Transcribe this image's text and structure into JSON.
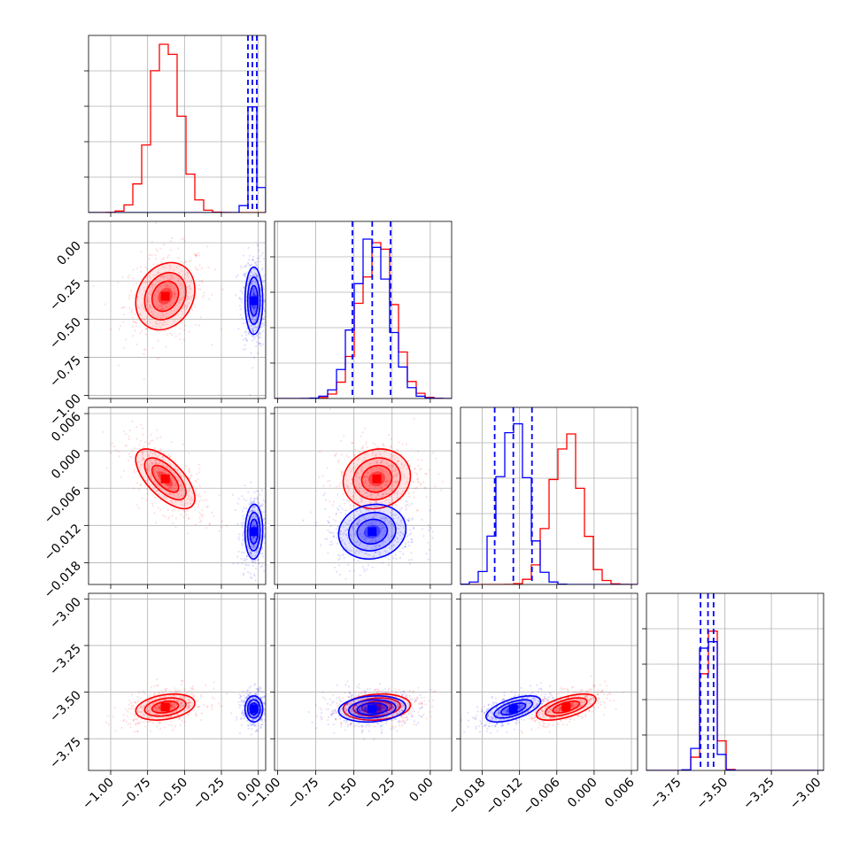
{
  "colors": {
    "set_a": "#ff0000",
    "set_b": "#0000ff",
    "grid": "#b0b0b0"
  },
  "chart_data": {
    "type": "corner",
    "params": [
      {
        "range": [
          -1.15,
          0.05
        ],
        "ticks": [
          -1.0,
          -0.75,
          -0.5,
          -0.25,
          0.0
        ],
        "labels": [
          "−1.00",
          "−0.75",
          "−0.50",
          "−0.25",
          "0.00"
        ]
      },
      {
        "range": [
          -1.02,
          0.14
        ],
        "ticks": [
          -1.0,
          -0.75,
          -0.5,
          -0.25,
          0.0
        ],
        "labels": [
          "−1.00",
          "−0.75",
          "−0.50",
          "−0.25",
          "0.00"
        ]
      },
      {
        "range": [
          -0.0215,
          0.007
        ],
        "ticks": [
          -0.018,
          -0.012,
          -0.006,
          0.0,
          0.006
        ],
        "labels": [
          "−0.018",
          "−0.012",
          "−0.006",
          "0.000",
          "0.006"
        ]
      },
      {
        "range": [
          -3.92,
          -2.97
        ],
        "ticks": [
          -3.75,
          -3.5,
          -3.25,
          -3.0
        ],
        "labels": [
          "−3.75",
          "−3.50",
          "−3.25",
          "−3.00"
        ]
      }
    ],
    "grid": true,
    "series": [
      {
        "color": "#ff0000",
        "means": [
          -0.63,
          -0.35,
          -0.0045,
          -3.58
        ],
        "sds": [
          0.1,
          0.11,
          0.0024,
          0.035
        ],
        "corr": [
          [
            0,
            0,
            0,
            0
          ],
          [
            0.2,
            0,
            0,
            0
          ],
          [
            -0.65,
            0.1,
            0,
            0
          ],
          [
            0.3,
            0.15,
            0.6,
            0
          ]
        ],
        "quantiles": [],
        "hist_peaks": [
          0.95,
          0.88,
          0.85,
          0.88
        ]
      },
      {
        "color": "#0000ff",
        "means": [
          -0.03,
          -0.38,
          -0.013,
          -3.59
        ],
        "sds": [
          0.03,
          0.11,
          0.0022,
          0.035
        ],
        "corr": [
          [
            0,
            0,
            0,
            0
          ],
          [
            0.0,
            0,
            0,
            0
          ],
          [
            0.05,
            0.1,
            0,
            0
          ],
          [
            0.0,
            0.15,
            0.6,
            0
          ]
        ],
        "quantiles": [
          [
            -0.07,
            -0.04,
            -0.01
          ],
          [
            -0.51,
            -0.38,
            -0.26
          ],
          [
            -0.016,
            -0.013,
            -0.01
          ],
          [
            -3.63,
            -3.59,
            -3.56
          ]
        ],
        "hist_peaks": [
          0.6,
          0.9,
          0.95,
          0.92
        ]
      }
    ]
  }
}
